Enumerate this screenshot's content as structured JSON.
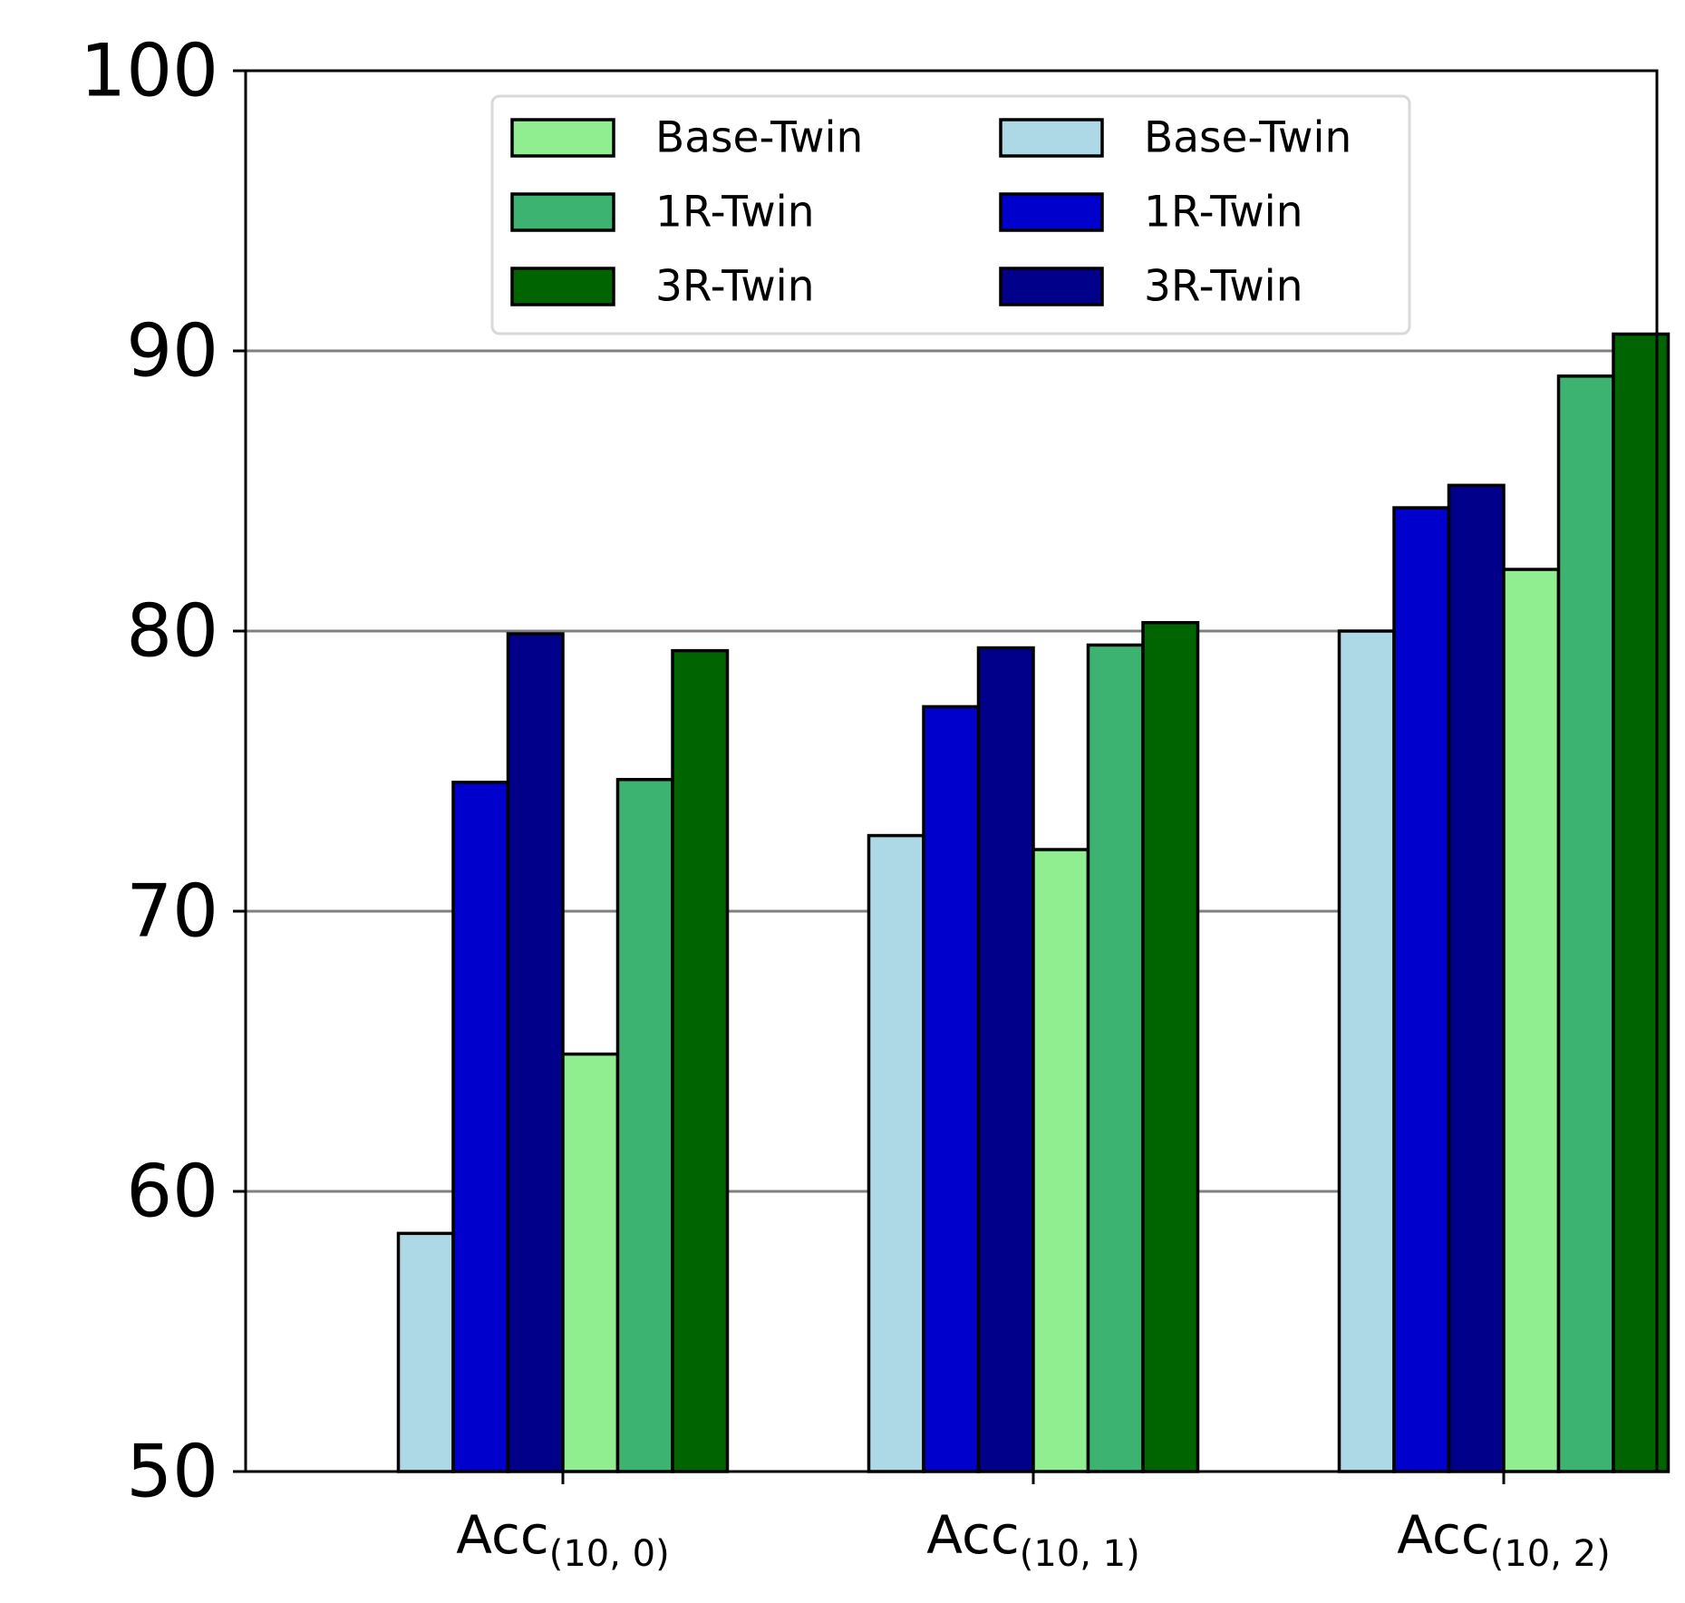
{
  "chart_data": {
    "type": "bar",
    "categories": [
      {
        "main": "Acc",
        "sub": "(10, 0)"
      },
      {
        "main": "Acc",
        "sub": "(10, 1)"
      },
      {
        "main": "Acc",
        "sub": "(10, 2)"
      }
    ],
    "series": [
      {
        "name": "Base-Twin",
        "color": "#add8e6",
        "values": [
          58.5,
          72.7,
          80.0
        ]
      },
      {
        "name": "1R-Twin",
        "color": "#0000cd",
        "values": [
          74.6,
          77.3,
          84.4
        ]
      },
      {
        "name": "3R-Twin",
        "color": "#00008b",
        "values": [
          79.9,
          79.4,
          85.2
        ]
      },
      {
        "name": "Base-Twin",
        "color": "#90ee90",
        "values": [
          64.9,
          72.2,
          82.2
        ]
      },
      {
        "name": "1R-Twin",
        "color": "#3cb371",
        "values": [
          74.7,
          79.5,
          89.1
        ]
      },
      {
        "name": "3R-Twin",
        "color": "#006400",
        "values": [
          79.3,
          80.3,
          90.6
        ]
      }
    ],
    "legend_order": [
      3,
      4,
      5,
      0,
      1,
      2
    ],
    "legend_columns": 2,
    "legend_position": "top-center",
    "ylim": [
      50,
      100
    ],
    "yticks": [
      50,
      60,
      70,
      80,
      90,
      100
    ],
    "grid": {
      "y": true,
      "color": "#808080"
    },
    "title": "",
    "xlabel": "",
    "ylabel": ""
  }
}
